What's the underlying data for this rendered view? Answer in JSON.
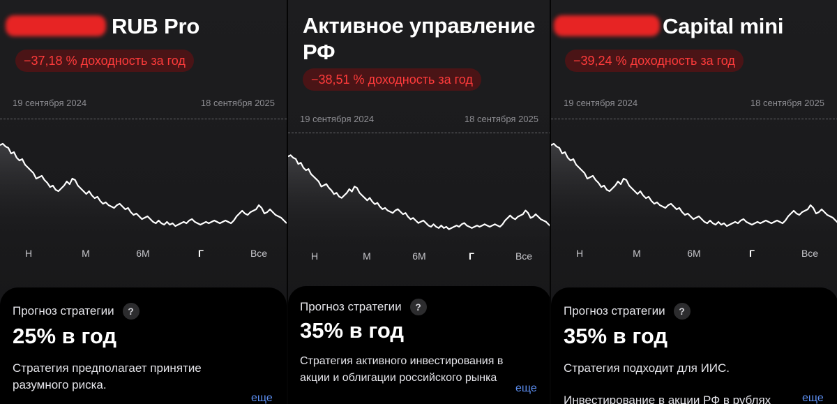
{
  "panels": [
    {
      "title": "RUB Pro",
      "return_label": "−37,18 % доходность за год",
      "date_start": "19 сентября 2024",
      "date_end": "18 сентября 2025",
      "periods": [
        "Н",
        "М",
        "6М",
        "Г",
        "Все"
      ],
      "active_period": "Г",
      "forecast_label": "Прогноз стратегии",
      "forecast_value": "25% в год",
      "description": "Стратегия предполагает принятие разумного риска.",
      "more_label": "еще"
    },
    {
      "title": "Активное управление РФ",
      "return_label": "−38,51 % доходность за год",
      "date_start": "19 сентября 2024",
      "date_end": "18 сентября 2025",
      "periods": [
        "Н",
        "М",
        "6М",
        "Г",
        "Все"
      ],
      "active_period": "Г",
      "forecast_label": "Прогноз стратегии",
      "forecast_value": "35% в год",
      "description": "Стратегия активного инвестирования в акции и облигации российского рынка",
      "more_label": "еще"
    },
    {
      "title": "Capital mini",
      "return_label": "−39,24 % доходность за год",
      "date_start": "19 сентября 2024",
      "date_end": "18 сентября 2025",
      "periods": [
        "Н",
        "М",
        "6М",
        "Г",
        "Все"
      ],
      "active_period": "Г",
      "forecast_label": "Прогноз стратегии",
      "forecast_value": "35% в год",
      "description": "Стратегия подходит для ИИС.",
      "description2": "Инвестирование в акции РФ в рублях",
      "more_label": "еще"
    }
  ],
  "help_icon": "question-icon",
  "colors": {
    "negative": "#ff3b3b",
    "badge_bg": "#4a1416",
    "link": "#5b8def",
    "line": "#ffffff"
  }
}
